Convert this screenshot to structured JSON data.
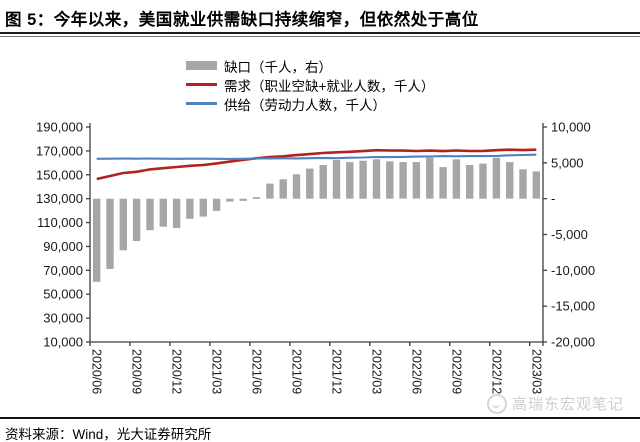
{
  "title": "图 5：今年以来，美国就业供需缺口持续缩窄，但依然处于高位",
  "source_note": "资料来源：Wind，光大证券研究所",
  "watermark": "高瑞东宏观笔记",
  "colors": {
    "gap_bar": "#a6a6a6",
    "demand_line": "#b22222",
    "supply_line": "#4f81bd",
    "axis": "#3f3f3f",
    "tick_text": "#1a1a1a"
  },
  "legend": [
    {
      "label": "缺口（千人，右）",
      "swatch": "bar",
      "color": "#a6a6a6"
    },
    {
      "label": "需求（职业空缺+就业人数，千人）",
      "swatch": "line",
      "color": "#b22222"
    },
    {
      "label": "供给（劳动力人数，千人）",
      "swatch": "line",
      "color": "#4f81bd"
    }
  ],
  "chart_data": {
    "type": "bar",
    "subtype": "bar+line combo, dual axis",
    "grid": false,
    "legend_position": "top",
    "x": [
      "2020/06",
      "2020/07",
      "2020/08",
      "2020/09",
      "2020/10",
      "2020/11",
      "2020/12",
      "2021/01",
      "2021/02",
      "2021/03",
      "2021/04",
      "2021/05",
      "2021/06",
      "2021/07",
      "2021/08",
      "2021/09",
      "2021/10",
      "2021/11",
      "2021/12",
      "2022/01",
      "2022/02",
      "2022/03",
      "2022/04",
      "2022/05",
      "2022/06",
      "2022/07",
      "2022/08",
      "2022/09",
      "2022/10",
      "2022/11",
      "2022/12",
      "2023/01",
      "2023/02",
      "2023/03"
    ],
    "x_label_every": 3,
    "x_tick_labels": [
      "2020/06",
      "2020/09",
      "2020/12",
      "2021/03",
      "2021/06",
      "2021/09",
      "2021/12",
      "2022/03",
      "2022/06",
      "2022/09",
      "2022/12",
      "2023/03"
    ],
    "left_axis": {
      "min": 10000,
      "max": 190000,
      "step": 20000,
      "tick_labels": [
        "190,000",
        "170,000",
        "150,000",
        "130,000",
        "110,000",
        "90,000",
        "70,000",
        "50,000",
        "30,000",
        "10,000"
      ]
    },
    "right_axis": {
      "min": -20000,
      "max": 10000,
      "step": 5000,
      "tick_labels": [
        "10,000",
        "5,000",
        "-",
        "-5,000",
        "-10,000",
        "-15,000",
        "-20,000"
      ]
    },
    "series": [
      {
        "name": "缺口（千人，右）",
        "type": "bar",
        "axis": "right",
        "color": "#a6a6a6",
        "values": [
          -11600,
          -9800,
          -7200,
          -5900,
          -4400,
          -3900,
          -4100,
          -2800,
          -2500,
          -1700,
          -400,
          -300,
          200,
          2100,
          2700,
          3400,
          4200,
          4700,
          5400,
          5100,
          5300,
          5500,
          5200,
          5100,
          5100,
          5700,
          4400,
          5500,
          4700,
          4900,
          5700,
          5100,
          4100,
          3800
        ]
      },
      {
        "name": "需求（职业空缺+就业人数，千人）",
        "type": "line",
        "axis": "left",
        "color": "#b22222",
        "values": [
          146500,
          149000,
          151500,
          152500,
          154500,
          155500,
          156500,
          157500,
          158200,
          159500,
          161000,
          162500,
          163800,
          164800,
          165500,
          166500,
          167300,
          168200,
          168800,
          169200,
          169800,
          170600,
          170300,
          170200,
          169900,
          170200,
          169800,
          170300,
          169900,
          170000,
          170600,
          171000,
          170700,
          171000
        ]
      },
      {
        "name": "供给（劳动力人数，千人）",
        "type": "line",
        "axis": "left",
        "color": "#4f81bd",
        "values": [
          163400,
          163500,
          163600,
          163500,
          163600,
          163500,
          163400,
          163500,
          163500,
          163400,
          163300,
          163400,
          163600,
          163700,
          163800,
          163700,
          163900,
          164100,
          163900,
          164300,
          164500,
          164900,
          164800,
          165000,
          165200,
          165300,
          165600,
          165500,
          165600,
          165600,
          165800,
          166300,
          166600,
          166800
        ]
      }
    ]
  }
}
